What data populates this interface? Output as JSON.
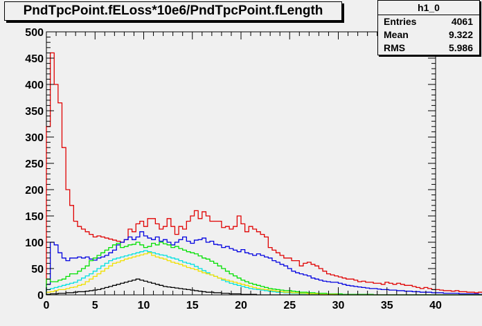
{
  "title": "PndTpcPoint.fELoss*10e6/PndTpcPoint.fLength",
  "stats": {
    "name": "h1_0",
    "rows": [
      {
        "label": "Entries",
        "value": "4061"
      },
      {
        "label": "Mean",
        "value": "9.322"
      },
      {
        "label": "RMS",
        "value": "5.986"
      }
    ]
  },
  "colors": {
    "red": "#e00000",
    "blue": "#0000e0",
    "green": "#00e000",
    "cyan": "#00e0e0",
    "yellow": "#f0e000",
    "black": "#000000",
    "frame_fill": "#f0f0f0"
  },
  "chart_data": {
    "type": "histogram",
    "xlim": [
      0,
      40
    ],
    "ylim": [
      0,
      500
    ],
    "xticks": [
      0,
      5,
      10,
      15,
      20,
      25,
      30,
      35,
      40
    ],
    "yticks": [
      0,
      50,
      100,
      150,
      200,
      250,
      300,
      350,
      400,
      450,
      500
    ],
    "bin_width": 0.4,
    "series": [
      {
        "color": "red",
        "values": [
          320,
          460,
          400,
          365,
          280,
          200,
          170,
          140,
          130,
          125,
          120,
          115,
          110,
          112,
          110,
          108,
          106,
          104,
          102,
          100,
          105,
          125,
          120,
          135,
          140,
          130,
          145,
          145,
          135,
          125,
          130,
          145,
          130,
          115,
          130,
          125,
          140,
          150,
          160,
          145,
          158,
          150,
          140,
          140,
          140,
          128,
          130,
          125,
          130,
          150,
          135,
          120,
          130,
          125,
          120,
          115,
          110,
          90,
          85,
          80,
          75,
          70,
          70,
          65,
          65,
          55,
          60,
          62,
          58,
          55,
          50,
          45,
          40,
          38,
          36,
          34,
          32,
          30,
          30,
          28,
          25,
          26,
          24,
          24,
          22,
          22,
          20,
          24,
          22,
          20,
          22,
          20,
          18,
          18,
          16,
          14,
          12,
          14,
          12,
          10,
          10,
          9,
          8,
          8,
          7,
          8,
          6,
          6,
          5,
          5,
          4,
          5,
          4,
          3,
          4,
          3,
          4,
          3,
          3,
          3,
          3,
          2,
          3,
          2,
          2,
          2,
          2,
          2,
          2,
          1,
          2,
          1,
          2,
          1,
          1,
          1,
          1,
          2,
          1,
          1
        ]
      },
      {
        "color": "blue",
        "values": [
          20,
          100,
          95,
          80,
          70,
          65,
          70,
          70,
          72,
          70,
          72,
          68,
          66,
          70,
          72,
          75,
          80,
          85,
          95,
          100,
          105,
          110,
          105,
          110,
          120,
          112,
          108,
          105,
          110,
          102,
          105,
          100,
          95,
          100,
          105,
          110,
          102,
          98,
          104,
          105,
          108,
          100,
          102,
          96,
          95,
          90,
          92,
          88,
          85,
          82,
          86,
          80,
          78,
          75,
          78,
          75,
          72,
          70,
          65,
          62,
          58,
          55,
          50,
          45,
          42,
          40,
          38,
          36,
          32,
          30,
          28,
          26,
          25,
          24,
          24,
          22,
          20,
          18,
          17,
          16,
          15,
          14,
          13,
          12,
          12,
          11,
          10,
          10,
          9,
          9,
          8,
          8,
          7,
          7,
          6,
          6,
          5,
          5,
          5,
          4,
          4,
          4,
          3,
          3,
          3,
          3,
          2,
          2,
          2,
          2,
          2,
          1,
          1,
          1,
          1,
          1,
          1,
          1,
          1,
          1,
          1,
          1,
          1,
          1,
          1,
          1,
          0,
          0,
          0,
          0,
          0,
          0,
          0,
          0,
          0,
          0,
          0,
          0,
          0,
          0
        ]
      },
      {
        "color": "green",
        "values": [
          30,
          25,
          25,
          28,
          30,
          35,
          40,
          40,
          45,
          50,
          55,
          65,
          70,
          75,
          80,
          85,
          90,
          95,
          98,
          90,
          92,
          95,
          96,
          100,
          95,
          90,
          92,
          98,
          95,
          100,
          97,
          95,
          90,
          92,
          88,
          85,
          82,
          80,
          78,
          74,
          70,
          68,
          64,
          60,
          55,
          50,
          45,
          40,
          36,
          32,
          28,
          25,
          22,
          20,
          18,
          16,
          14,
          12,
          11,
          10,
          9,
          8,
          8,
          7,
          6,
          5,
          5,
          4,
          4,
          3,
          3,
          3,
          2,
          2,
          2,
          2,
          1,
          1,
          1,
          1,
          1,
          1,
          1,
          1,
          0,
          0,
          0,
          0,
          0,
          0,
          0,
          0,
          0,
          0,
          0,
          0,
          0,
          0,
          0,
          0,
          0,
          0,
          0,
          0,
          0,
          0,
          0,
          0,
          0,
          0,
          0,
          0,
          0,
          0,
          0,
          0,
          0,
          0,
          0,
          0,
          0,
          0,
          0,
          0,
          0,
          0,
          0,
          0,
          0,
          0,
          0,
          0,
          0,
          0,
          0,
          0,
          0,
          0,
          0,
          0
        ]
      },
      {
        "color": "cyan",
        "values": [
          10,
          12,
          14,
          16,
          18,
          20,
          22,
          24,
          28,
          32,
          36,
          40,
          45,
          50,
          55,
          60,
          65,
          68,
          70,
          72,
          74,
          76,
          78,
          80,
          82,
          84,
          82,
          80,
          78,
          76,
          75,
          72,
          70,
          68,
          65,
          62,
          60,
          58,
          54,
          50,
          46,
          42,
          38,
          35,
          32,
          28,
          25,
          22,
          20,
          18,
          16,
          14,
          12,
          11,
          10,
          9,
          8,
          7,
          6,
          5,
          5,
          4,
          4,
          3,
          3,
          2,
          2,
          2,
          1,
          1,
          1,
          1,
          1,
          1,
          0,
          0,
          0,
          0,
          0,
          0,
          0,
          0,
          0,
          0,
          0,
          0,
          0,
          0,
          0,
          0,
          0,
          0,
          0,
          0,
          0,
          0,
          0,
          0,
          0,
          0,
          0,
          0,
          0,
          0,
          0,
          0,
          0,
          0,
          0,
          0,
          0,
          0,
          0,
          0,
          0,
          0,
          0,
          0,
          0,
          0,
          0,
          0,
          0,
          0,
          0,
          0,
          0,
          0,
          0,
          0,
          0,
          0,
          0,
          0,
          0,
          0,
          0,
          0,
          0,
          0
        ]
      },
      {
        "color": "yellow",
        "values": [
          5,
          6,
          8,
          10,
          10,
          12,
          14,
          15,
          18,
          20,
          25,
          30,
          35,
          40,
          45,
          50,
          55,
          60,
          62,
          65,
          68,
          70,
          72,
          74,
          76,
          78,
          80,
          75,
          72,
          70,
          68,
          65,
          62,
          60,
          58,
          55,
          52,
          50,
          48,
          45,
          42,
          40,
          38,
          35,
          32,
          30,
          28,
          26,
          24,
          22,
          20,
          18,
          16,
          14,
          12,
          11,
          10,
          9,
          8,
          7,
          6,
          5,
          5,
          4,
          4,
          3,
          3,
          2,
          2,
          2,
          1,
          1,
          1,
          1,
          1,
          0,
          0,
          0,
          0,
          0,
          0,
          0,
          0,
          0,
          0,
          0,
          0,
          0,
          0,
          0,
          0,
          0,
          0,
          0,
          0,
          0,
          0,
          0,
          0,
          0,
          0,
          0,
          0,
          0,
          0,
          0,
          0,
          0,
          0,
          0,
          0,
          0,
          0,
          0,
          0,
          0,
          0,
          0,
          0,
          0,
          0,
          0,
          0,
          0,
          0,
          0,
          0,
          0,
          0,
          0,
          0,
          0,
          0,
          0,
          0,
          0,
          0,
          0,
          0,
          0
        ]
      },
      {
        "color": "black",
        "values": [
          1,
          2,
          2,
          3,
          3,
          4,
          4,
          5,
          6,
          6,
          7,
          8,
          9,
          10,
          12,
          14,
          16,
          18,
          20,
          22,
          24,
          26,
          28,
          30,
          28,
          26,
          24,
          22,
          20,
          18,
          16,
          15,
          14,
          13,
          12,
          11,
          10,
          9,
          8,
          7,
          6,
          5,
          5,
          4,
          4,
          3,
          3,
          2,
          2,
          2,
          1,
          1,
          1,
          1,
          0,
          0,
          0,
          0,
          0,
          0,
          0,
          0,
          0,
          0,
          0,
          0,
          0,
          0,
          0,
          0,
          0,
          0,
          0,
          0,
          0,
          0,
          0,
          0,
          0,
          0,
          0,
          0,
          0,
          0,
          0,
          0,
          0,
          0,
          0,
          0,
          0,
          0,
          0,
          0,
          0,
          0,
          0,
          0,
          0,
          0,
          0,
          0,
          0,
          0,
          0,
          0,
          0,
          0,
          0,
          0,
          0,
          0,
          0,
          0,
          0,
          0,
          0,
          0,
          0,
          0,
          0,
          0,
          0,
          0,
          0,
          0,
          0,
          0,
          0,
          0,
          0,
          0,
          0,
          0,
          0,
          0,
          0,
          0,
          0,
          0
        ]
      }
    ]
  }
}
